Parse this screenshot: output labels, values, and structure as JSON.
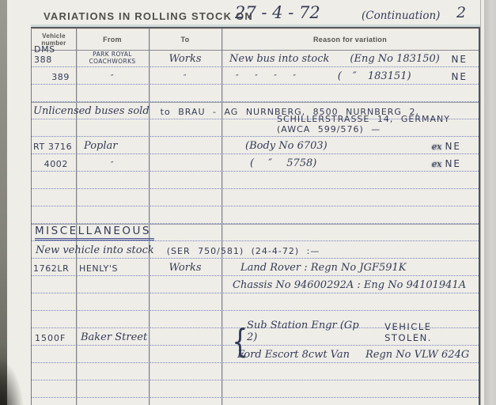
{
  "document": {
    "title": "VARIATIONS IN ROLLING STOCK ON",
    "date": "27 - 4 - 72",
    "continuation": "(Continuation)",
    "page_number": "2"
  },
  "table": {
    "headers": {
      "vehicle_line1": "Vehicle",
      "vehicle_line2": "number",
      "from": "From",
      "to": "To",
      "reason": "Reason for variation"
    },
    "rows": {
      "dms388": {
        "vehicle": "DMS 388",
        "from_line1": "PARK ROYAL",
        "from_line2": "COACHWORKS",
        "to": "Works",
        "reason": "New bus into stock",
        "detail": "(Eng No 183150)",
        "note": "NE"
      },
      "dms389": {
        "vehicle": "389",
        "from": "″",
        "to": "″",
        "reason_dittos": "″ ″ ″ ″",
        "detail": "( ″ 183151)",
        "note": "NE"
      },
      "sold": {
        "script": "Unlicensed buses sold",
        "caps": "to BRAU - AG NURNBERG, 8500 NURNBERG 2,",
        "line2": "SCHILLERSTRASSE 14, GERMANY (AWCA 599/576) —"
      },
      "rt3716": {
        "vehicle": "RT 3716",
        "from": "Poplar",
        "detail": "(Body No 6703)",
        "note_prefix": "ex",
        "note": "NE"
      },
      "rt4002": {
        "vehicle": "4002",
        "from": "″",
        "detail": "( ″ 5758)",
        "note_prefix": "ex",
        "note": "NE"
      },
      "misc_heading": "MISCELLANEOUS",
      "new_vehicle": {
        "script": "New vehicle into stock",
        "caps": "(SER 750/581) (24-4-72) :—"
      },
      "henlys": {
        "vehicle": "1762LR",
        "from": "HENLY'S",
        "to": "Works",
        "reason": "Land Rover :  Regn No JGF591K",
        "chassis": "Chassis No 94600292A : Eng No 94101941A"
      },
      "stolen": {
        "vehicle": "1500F",
        "from": "Baker Street",
        "brace": "{",
        "line1_script": "Sub Station Engr (Gp 2)",
        "line1_caps": "VEHICLE STOLEN.",
        "line2_script": "Ford Escort 8cwt Van",
        "line2_detail": "Regn No VLW 624G"
      }
    }
  }
}
